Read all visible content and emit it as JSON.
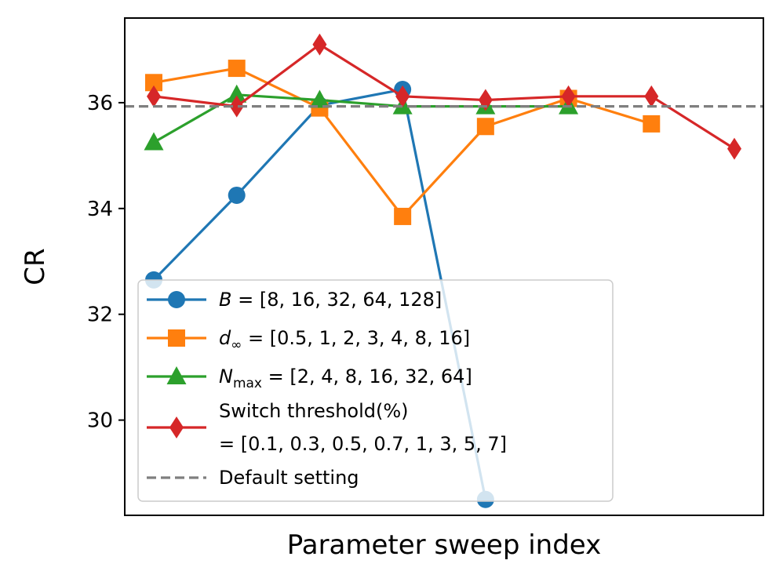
{
  "chart_data": {
    "type": "line",
    "title": "",
    "xlabel": "Parameter sweep index",
    "ylabel": "CR",
    "xlim": [
      -0.35,
      7.35
    ],
    "ylim": [
      28.2,
      37.6
    ],
    "yticks": [
      30,
      32,
      34,
      36
    ],
    "ytick_labels": [
      "30",
      "32",
      "34",
      "36"
    ],
    "grid": false,
    "legend_position": "lower-left",
    "default_setting": {
      "value": 35.93,
      "label": "Default setting",
      "color": "#7f7f7f"
    },
    "series": [
      {
        "name": "B = [8, 16, 32, 64, 128]",
        "legend_var": "B",
        "legend_sub": "",
        "legend_rest": " = [8, 16, 32, 64, 128]",
        "legend_line2": "",
        "marker": "circle",
        "color": "#1f77b4",
        "x": [
          0,
          1,
          2,
          3,
          4
        ],
        "values": [
          32.65,
          34.25,
          35.95,
          36.25,
          28.5
        ]
      },
      {
        "name": "d∞ = [0.5, 1, 2, 3, 4, 8, 16]",
        "legend_var": "d",
        "legend_sub": "∞",
        "legend_rest": " = [0.5, 1, 2, 3, 4, 8, 16]",
        "legend_line2": "",
        "marker": "square",
        "color": "#ff7f0e",
        "x": [
          0,
          1,
          2,
          3,
          4,
          5,
          6
        ],
        "values": [
          36.38,
          36.65,
          35.9,
          33.85,
          35.55,
          36.08,
          35.6
        ]
      },
      {
        "name": "Nmax = [2, 4, 8, 16, 32, 64]",
        "legend_var": "N",
        "legend_sub": "max",
        "legend_rest": " = [2, 4, 8, 16, 32, 64]",
        "legend_line2": "",
        "marker": "triangle",
        "color": "#2ca02c",
        "x": [
          0,
          1,
          2,
          3,
          4,
          5
        ],
        "values": [
          35.25,
          36.15,
          36.05,
          35.93,
          35.93,
          35.93
        ]
      },
      {
        "name": "Switch threshold(%) = [0.1, 0.3, 0.5, 0.7, 1, 3, 5, 7]",
        "legend_var": "",
        "legend_sub": "",
        "legend_rest": "Switch threshold(%)",
        "legend_line2": "= [0.1, 0.3, 0.5, 0.7, 1, 3, 5, 7]",
        "marker": "diamond",
        "color": "#d62728",
        "x": [
          0,
          1,
          2,
          3,
          4,
          5,
          6,
          7
        ],
        "values": [
          36.12,
          35.93,
          37.1,
          36.12,
          36.05,
          36.12,
          36.12,
          35.13
        ]
      }
    ]
  }
}
